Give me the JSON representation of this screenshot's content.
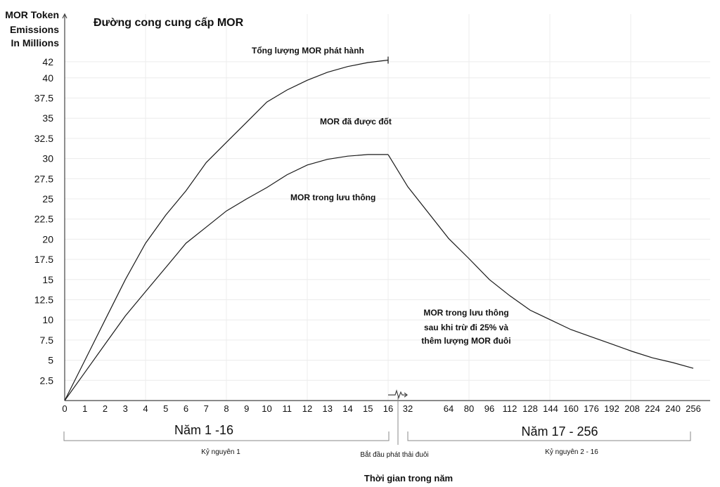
{
  "chart_data": {
    "type": "line",
    "title": "Đường cong cung cấp MOR",
    "ylabel": [
      "MOR Token",
      "Emissions",
      "In Millions"
    ],
    "xlabel": "Thời gian trong năm",
    "ylim": [
      0,
      42
    ],
    "yticks": [
      2.5,
      5,
      7.5,
      10,
      12.5,
      15,
      17.5,
      20,
      22.5,
      25,
      27.5,
      30,
      32.5,
      35,
      37.5,
      40,
      42
    ],
    "x_ticks_years_1_16": [
      "0",
      "1",
      "2",
      "3",
      "4",
      "5",
      "6",
      "7",
      "8",
      "9",
      "10",
      "11",
      "12",
      "13",
      "14",
      "15",
      "16"
    ],
    "x_ticks_years_17_256": [
      "32",
      "64",
      "80",
      "96",
      "112",
      "128",
      "144",
      "160",
      "176",
      "192",
      "208",
      "224",
      "240",
      "256"
    ],
    "series": [
      {
        "name": "Tổng lượng MOR phát hành",
        "points": [
          [
            0,
            0
          ],
          [
            1,
            5
          ],
          [
            2,
            10
          ],
          [
            3,
            15
          ],
          [
            4,
            19.5
          ],
          [
            5,
            23
          ],
          [
            6,
            26
          ],
          [
            7,
            29.5
          ],
          [
            8,
            32
          ],
          [
            9,
            34.5
          ],
          [
            10,
            37
          ],
          [
            11,
            38.5
          ],
          [
            12,
            39.7
          ],
          [
            13,
            40.7
          ],
          [
            14,
            41.4
          ],
          [
            15,
            41.9
          ],
          [
            16,
            42.2
          ]
        ]
      },
      {
        "name": "MOR trong lưu thông",
        "points": [
          [
            0,
            0
          ],
          [
            1,
            3.5
          ],
          [
            2,
            7
          ],
          [
            3,
            10.5
          ],
          [
            4,
            13.5
          ],
          [
            5,
            16.5
          ],
          [
            6,
            19.5
          ],
          [
            7,
            21.5
          ],
          [
            8,
            23.5
          ],
          [
            9,
            25
          ],
          [
            10,
            26.4
          ],
          [
            11,
            28
          ],
          [
            12,
            29.2
          ],
          [
            13,
            29.9
          ],
          [
            14,
            30.3
          ],
          [
            15,
            30.5
          ],
          [
            16,
            30.5
          ]
        ]
      },
      {
        "name": "MOR trong lưu thông sau khi trừ đi 25% và thêm lượng MOR đuôi",
        "points": [
          [
            16,
            30.5
          ],
          [
            32,
            26.5
          ],
          [
            64,
            20.1
          ],
          [
            80,
            17.6
          ],
          [
            96,
            15
          ],
          [
            112,
            13
          ],
          [
            128,
            11.2
          ],
          [
            144,
            10
          ],
          [
            160,
            8.8
          ],
          [
            176,
            7.9
          ],
          [
            192,
            7
          ],
          [
            208,
            6.1
          ],
          [
            224,
            5.3
          ],
          [
            240,
            4.7
          ],
          [
            256,
            4
          ]
        ]
      }
    ],
    "annotations": {
      "total_label": "Tổng lượng MOR phát hành",
      "burned_label": "MOR đã được đốt",
      "circulating_label": "MOR trong lưu thông",
      "after_label_lines": [
        "MOR trong lưu thông",
        "sau khi trừ đi 25% và",
        "thêm lượng MOR đuôi"
      ]
    },
    "eras": {
      "left_title": "Năm 1 -16",
      "left_sub": "Kỷ nguyên 1",
      "right_title": "Năm 17 - 256",
      "right_sub": "Kỷ nguyên  2 - 16",
      "tail_start": "Bắt đầu phát thải đuôi"
    }
  }
}
